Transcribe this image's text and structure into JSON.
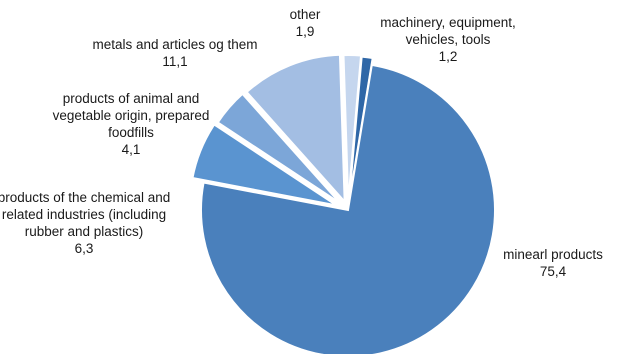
{
  "chart_data": {
    "type": "pie",
    "title": "",
    "slices": [
      {
        "label_lines": [
          "machinery, equipment,",
          "vehicles, tools"
        ],
        "value": 1.2,
        "value_text": "1,2",
        "color": "#2f67a7"
      },
      {
        "label_lines": [
          "minearl products"
        ],
        "value": 75.4,
        "value_text": "75,4",
        "color": "#4a80bc"
      },
      {
        "label_lines": [
          "products of the chemical and",
          "related industries (including",
          "rubber and plastics)"
        ],
        "value": 6.3,
        "value_text": "6,3",
        "color": "#5a94d0"
      },
      {
        "label_lines": [
          "products of animal and",
          "vegetable origin, prepared",
          "foodfills"
        ],
        "value": 4.1,
        "value_text": "4,1",
        "color": "#7ca6d8"
      },
      {
        "label_lines": [
          "metals and articles og them"
        ],
        "value": 11.1,
        "value_text": "11,1",
        "color": "#a3bee3"
      },
      {
        "label_lines": [
          "other"
        ],
        "value": 1.9,
        "value_text": "1,9",
        "color": "#c5d6ee"
      }
    ],
    "start_angle_deg": 5,
    "direction": "clockwise",
    "exploded": true,
    "legend": "none"
  }
}
